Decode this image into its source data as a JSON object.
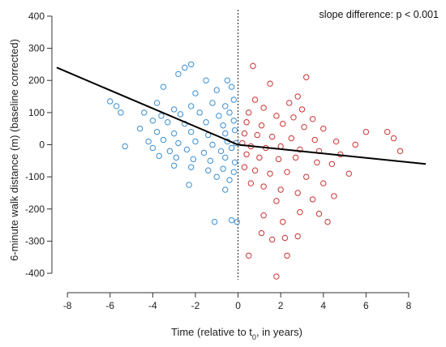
{
  "chart_data": {
    "type": "scatter",
    "title": "",
    "xlabel": "Time (relative to t",
    "xlabel_sub": "0",
    "xlabel_end": ", in years)",
    "ylabel": "6-minute walk distance (m) (baseline corrected)",
    "annotation": "slope difference: p < 0.001",
    "xlim": [
      -8.5,
      8.8
    ],
    "ylim": [
      -420,
      420
    ],
    "x_ticks": [
      -8,
      -6,
      -4,
      -2,
      0,
      2,
      4,
      6,
      8
    ],
    "y_ticks": [
      -400,
      -300,
      -200,
      -100,
      0,
      100,
      200,
      300,
      400
    ],
    "reference_line": {
      "x": 0,
      "style": "dotted"
    },
    "colors": {
      "before": "#3b8fd1",
      "after": "#cc3333",
      "fit": "#000000"
    },
    "fit_line": [
      [
        -8.5,
        240
      ],
      [
        0,
        0
      ],
      [
        8.8,
        -60
      ]
    ],
    "series": [
      {
        "color": "#3b8fd1",
        "points": [
          [
            -2.5,
            240
          ],
          [
            -2.2,
            250
          ],
          [
            -2.8,
            220
          ],
          [
            -1.5,
            200
          ],
          [
            -0.5,
            200
          ],
          [
            -0.3,
            180
          ],
          [
            -3.5,
            180
          ],
          [
            -1.0,
            170
          ],
          [
            -2.0,
            160
          ],
          [
            -6.0,
            135
          ],
          [
            -5.7,
            120
          ],
          [
            -3.8,
            130
          ],
          [
            -3.0,
            110
          ],
          [
            -2.2,
            120
          ],
          [
            -1.2,
            130
          ],
          [
            -0.6,
            120
          ],
          [
            -0.2,
            140
          ],
          [
            -5.5,
            100
          ],
          [
            -4.4,
            100
          ],
          [
            -3.6,
            90
          ],
          [
            -2.7,
            95
          ],
          [
            -1.8,
            100
          ],
          [
            -0.9,
            90
          ],
          [
            -0.4,
            100
          ],
          [
            -4.0,
            75
          ],
          [
            -3.3,
            70
          ],
          [
            -2.5,
            65
          ],
          [
            -1.5,
            70
          ],
          [
            -0.7,
            60
          ],
          [
            -0.2,
            75
          ],
          [
            -4.6,
            50
          ],
          [
            -3.8,
            40
          ],
          [
            -3.0,
            35
          ],
          [
            -2.2,
            40
          ],
          [
            -1.4,
            30
          ],
          [
            -0.6,
            35
          ],
          [
            -0.15,
            45
          ],
          [
            -5.3,
            -5
          ],
          [
            -4.2,
            10
          ],
          [
            -3.5,
            15
          ],
          [
            -2.8,
            5
          ],
          [
            -2.0,
            10
          ],
          [
            -1.2,
            0
          ],
          [
            -0.5,
            10
          ],
          [
            -0.1,
            5
          ],
          [
            -4.0,
            -10
          ],
          [
            -3.2,
            -20
          ],
          [
            -2.4,
            -15
          ],
          [
            -1.6,
            -25
          ],
          [
            -0.8,
            -20
          ],
          [
            -0.3,
            -10
          ],
          [
            -3.7,
            -35
          ],
          [
            -2.9,
            -40
          ],
          [
            -2.1,
            -45
          ],
          [
            -1.3,
            -50
          ],
          [
            -0.6,
            -40
          ],
          [
            -0.15,
            -55
          ],
          [
            -3.0,
            -65
          ],
          [
            -2.2,
            -70
          ],
          [
            -1.4,
            -80
          ],
          [
            -0.7,
            -75
          ],
          [
            -0.2,
            -85
          ],
          [
            -2.3,
            -125
          ],
          [
            -1.0,
            -100
          ],
          [
            -0.4,
            -110
          ],
          [
            -0.6,
            -140
          ],
          [
            -1.1,
            -240
          ],
          [
            -0.3,
            -235
          ],
          [
            -0.05,
            -240
          ]
        ]
      },
      {
        "color": "#cc3333",
        "points": [
          [
            0.7,
            245
          ],
          [
            3.2,
            210
          ],
          [
            1.5,
            190
          ],
          [
            2.8,
            150
          ],
          [
            0.8,
            140
          ],
          [
            2.4,
            130
          ],
          [
            1.2,
            115
          ],
          [
            3.0,
            110
          ],
          [
            0.5,
            100
          ],
          [
            1.8,
            90
          ],
          [
            2.6,
            85
          ],
          [
            3.5,
            80
          ],
          [
            0.4,
            70
          ],
          [
            1.1,
            60
          ],
          [
            2.1,
            65
          ],
          [
            3.1,
            55
          ],
          [
            4.0,
            50
          ],
          [
            6.0,
            40
          ],
          [
            7.0,
            40
          ],
          [
            7.3,
            20
          ],
          [
            0.3,
            35
          ],
          [
            0.9,
            30
          ],
          [
            1.6,
            25
          ],
          [
            2.5,
            20
          ],
          [
            3.6,
            15
          ],
          [
            4.6,
            10
          ],
          [
            5.5,
            0
          ],
          [
            7.6,
            -20
          ],
          [
            0.2,
            5
          ],
          [
            0.6,
            -5
          ],
          [
            1.3,
            -10
          ],
          [
            2.0,
            -5
          ],
          [
            2.9,
            -15
          ],
          [
            3.8,
            -20
          ],
          [
            4.8,
            -30
          ],
          [
            0.4,
            -30
          ],
          [
            1.0,
            -40
          ],
          [
            1.9,
            -45
          ],
          [
            2.7,
            -40
          ],
          [
            3.7,
            -55
          ],
          [
            4.4,
            -60
          ],
          [
            5.2,
            -90
          ],
          [
            0.3,
            -70
          ],
          [
            0.8,
            -80
          ],
          [
            1.5,
            -90
          ],
          [
            2.3,
            -85
          ],
          [
            3.2,
            -100
          ],
          [
            4.0,
            -120
          ],
          [
            0.6,
            -120
          ],
          [
            1.2,
            -130
          ],
          [
            2.0,
            -140
          ],
          [
            2.8,
            -150
          ],
          [
            3.5,
            -170
          ],
          [
            1.8,
            -175
          ],
          [
            2.9,
            -210
          ],
          [
            3.8,
            -215
          ],
          [
            4.2,
            -240
          ],
          [
            1.2,
            -220
          ],
          [
            2.1,
            -240
          ],
          [
            1.1,
            -275
          ],
          [
            1.6,
            -295
          ],
          [
            2.2,
            -290
          ],
          [
            2.8,
            -285
          ],
          [
            0.5,
            -345
          ],
          [
            2.3,
            -345
          ],
          [
            1.8,
            -410
          ],
          [
            4.5,
            -160
          ]
        ]
      }
    ]
  }
}
